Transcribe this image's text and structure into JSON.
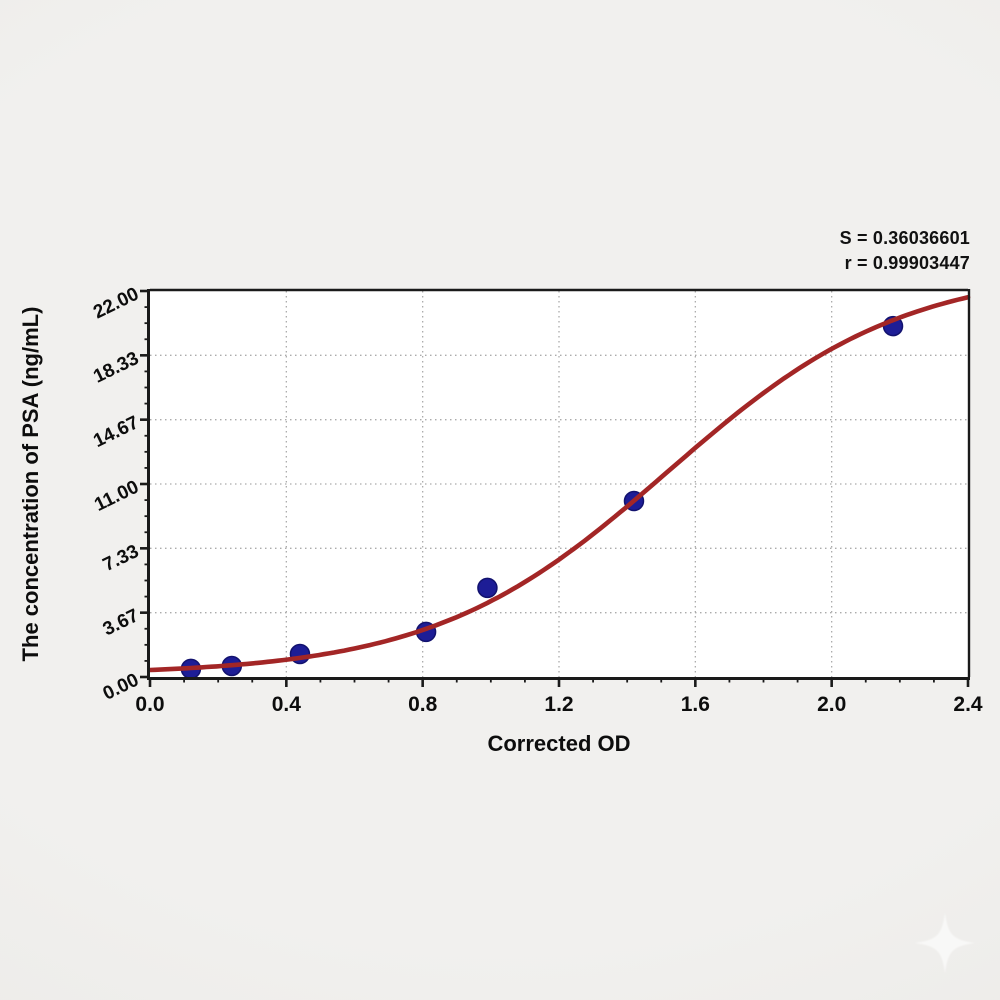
{
  "chart_data": {
    "type": "scatter",
    "title": "",
    "xlabel": "Corrected OD",
    "ylabel": "The concentration of PSA (ng/mL)",
    "xlim": [
      0,
      2.4
    ],
    "ylim": [
      0,
      22
    ],
    "x_major_divisions": 6,
    "x_minor_per_major": 4,
    "y_major_divisions": 6,
    "y_minor_per_major": 4,
    "x_tick_labels": [
      "0.0",
      "0.4",
      "0.8",
      "1.2",
      "1.6",
      "2.0",
      "2.4"
    ],
    "y_tick_labels": [
      "0.00",
      "3.67",
      "7.33",
      "11.00",
      "14.67",
      "18.33",
      "22.00"
    ],
    "grid": "dotted at major ticks, plot framed on all four sides",
    "legend": "none",
    "points": [
      {
        "x": 0.12,
        "y": 0.46
      },
      {
        "x": 0.24,
        "y": 0.63
      },
      {
        "x": 0.44,
        "y": 1.31
      },
      {
        "x": 0.81,
        "y": 2.57
      },
      {
        "x": 0.99,
        "y": 5.08
      },
      {
        "x": 1.42,
        "y": 10.03
      },
      {
        "x": 2.18,
        "y": 20.0
      }
    ],
    "fit_curve": {
      "model": "logistic",
      "base": 0.12,
      "top": 23.2,
      "k": 2.9,
      "x0": 1.52
    },
    "annotations": {
      "s_line": "S = 0.36036601",
      "r_line": "r = 0.99903447"
    },
    "stats": {
      "S": 0.36036601,
      "r": 0.99903447
    },
    "colors": {
      "curve": "#a32626",
      "points": "#1d1d96",
      "point_edge": "#12126e",
      "grid": "#ababab",
      "axis": "#1a1a1a",
      "text": "#0d0d0d",
      "plot_bg": "#ffffff"
    }
  },
  "watermark": {
    "icon": "sparkle-star-icon"
  }
}
